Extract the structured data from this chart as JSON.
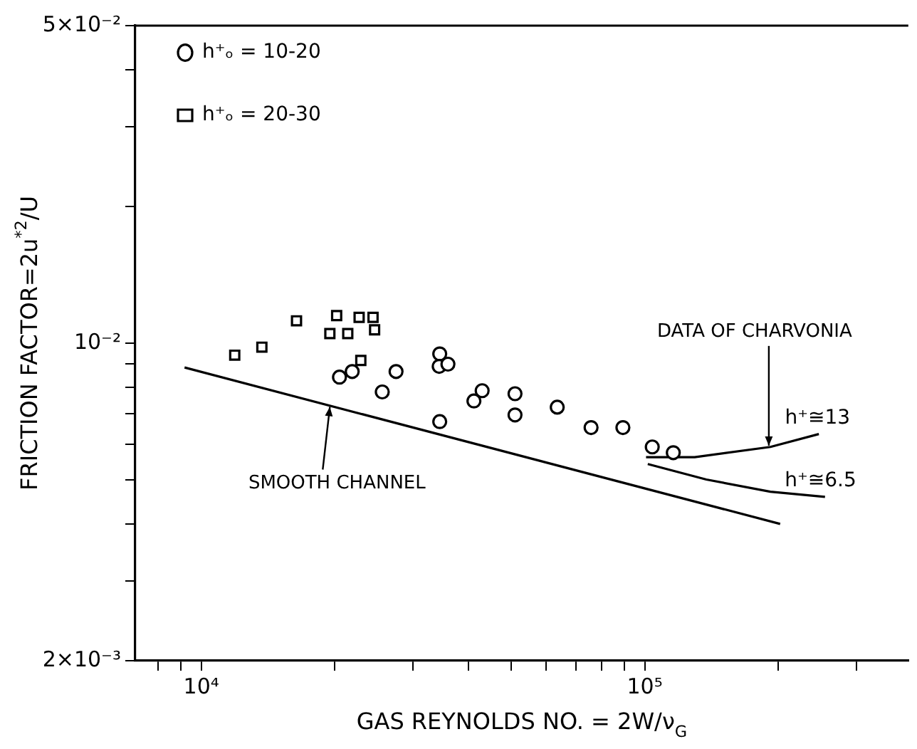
{
  "chart_data": {
    "type": "scatter",
    "xlabel": "GAS REYNOLDS NO. = 2W/ν$_{G}$",
    "ylabel": "FRICTION FACTOR=2u$^{*2}$/U",
    "log": "xy",
    "grid": false,
    "legend": "top left",
    "xlim": [
      7100,
      393000
    ],
    "ylim": [
      0.002,
      0.05
    ],
    "xticks": [
      {
        "value": 8000,
        "label": null
      },
      {
        "value": 9000,
        "label": null
      },
      {
        "value": 10000,
        "label": "10⁴"
      },
      {
        "value": 20000,
        "label": null
      },
      {
        "value": 30000,
        "label": null
      },
      {
        "value": 40000,
        "label": null
      },
      {
        "value": 50000,
        "label": null
      },
      {
        "value": 60000,
        "label": null
      },
      {
        "value": 70000,
        "label": null
      },
      {
        "value": 80000,
        "label": null
      },
      {
        "value": 90000,
        "label": null
      },
      {
        "value": 100000,
        "label": "10⁵"
      },
      {
        "value": 200000,
        "label": null
      },
      {
        "value": 300000,
        "label": null
      }
    ],
    "yticks": [
      {
        "value": 0.002,
        "label": "2×10⁻³"
      },
      {
        "value": 0.003,
        "label": null
      },
      {
        "value": 0.004,
        "label": null
      },
      {
        "value": 0.005,
        "label": null
      },
      {
        "value": 0.006,
        "label": null
      },
      {
        "value": 0.007,
        "label": null
      },
      {
        "value": 0.008,
        "label": null
      },
      {
        "value": 0.009,
        "label": null
      },
      {
        "value": 0.01,
        "label": "10⁻²"
      },
      {
        "value": 0.02,
        "label": null
      },
      {
        "value": 0.03,
        "label": null
      },
      {
        "value": 0.04,
        "label": null
      },
      {
        "value": 0.05,
        "label": "5×10⁻²"
      }
    ],
    "series": [
      {
        "name": "h⁺ₒ = 10-20",
        "type": "scatter",
        "marker": "circle",
        "color": "#000000",
        "x": [
          20500,
          21900,
          27500,
          25600,
          34500,
          34400,
          36000,
          34500,
          41200,
          43000,
          51000,
          51000,
          63500,
          75700,
          89300,
          104000,
          116000
        ],
        "values": [
          0.00842,
          0.00866,
          0.00866,
          0.00781,
          0.00947,
          0.00889,
          0.00899,
          0.00672,
          0.00746,
          0.00786,
          0.00774,
          0.00695,
          0.00723,
          0.00652,
          0.00652,
          0.00591,
          0.00574
        ]
      },
      {
        "name": "h⁺ₒ = 20-30",
        "type": "scatter",
        "marker": "square",
        "color": "#000000",
        "x": [
          11900,
          13700,
          16400,
          20200,
          19500,
          21400,
          22700,
          24400,
          24600,
          22900
        ],
        "values": [
          0.00941,
          0.0098,
          0.0112,
          0.0115,
          0.0105,
          0.0105,
          0.0114,
          0.0114,
          0.0107,
          0.00916
        ]
      },
      {
        "type": "line",
        "marker": "none",
        "color": "#000000",
        "x": [
          9170,
          202000
        ],
        "values": [
          0.00884,
          0.004
        ]
      },
      {
        "name": "h⁺≅13",
        "type": "line",
        "marker": "none",
        "color": "#000000",
        "x": [
          100700,
          129600,
          192000,
          247000
        ],
        "values": [
          0.00561,
          0.00561,
          0.00591,
          0.00631
        ]
      },
      {
        "name": "h⁺≅6.5",
        "type": "line",
        "marker": "none",
        "color": "#000000",
        "x": [
          101600,
          137700,
          192000,
          255000
        ],
        "values": [
          0.00542,
          0.00501,
          0.00471,
          0.00459
        ]
      }
    ],
    "annotations": [
      {
        "text": "SMOOTH CHANNEL",
        "x": 19500,
        "y": 0.00724
      },
      {
        "text": "DATA OF CHARVONIA",
        "x": 190500,
        "y": 0.00595
      }
    ]
  }
}
